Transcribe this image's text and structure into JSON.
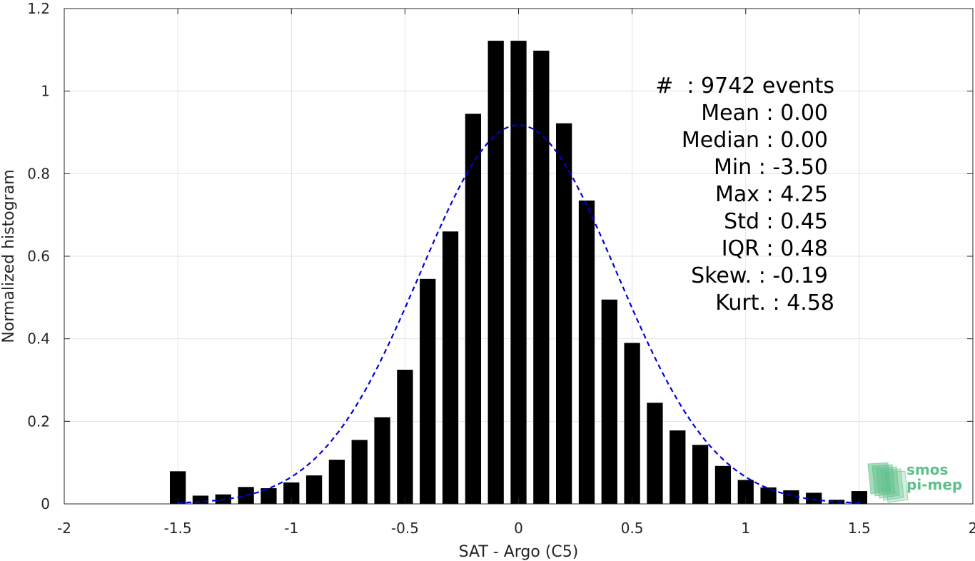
{
  "chart_data": {
    "type": "bar",
    "title": "",
    "xlabel": "SAT - Argo (C5)",
    "ylabel": "Normalized histogram",
    "xlim": [
      -2,
      2
    ],
    "ylim": [
      0,
      1.2
    ],
    "xticks": [
      -2,
      -1.5,
      -1,
      -0.5,
      0,
      0.5,
      1,
      1.5,
      2
    ],
    "xtick_labels": [
      "-2",
      "-1.5",
      "-1",
      "-0.5",
      "0",
      "0.5",
      "1",
      "1.5",
      "2"
    ],
    "yticks": [
      0,
      0.2,
      0.4,
      0.6,
      0.8,
      1,
      1.2
    ],
    "ytick_labels": [
      "0",
      "0.2",
      "0.4",
      "0.6",
      "0.8",
      "1",
      "1.2"
    ],
    "grid": true,
    "bar_width": 0.07,
    "series": [
      {
        "type": "bar",
        "color": "#000000",
        "x": [
          -1.5,
          -1.4,
          -1.3,
          -1.2,
          -1.1,
          -1.0,
          -0.9,
          -0.8,
          -0.7,
          -0.6,
          -0.5,
          -0.4,
          -0.3,
          -0.2,
          -0.1,
          0.0,
          0.1,
          0.2,
          0.3,
          0.4,
          0.5,
          0.6,
          0.7,
          0.8,
          0.9,
          1.0,
          1.1,
          1.2,
          1.3,
          1.4,
          1.5
        ],
        "values": [
          0.079,
          0.02,
          0.023,
          0.041,
          0.038,
          0.052,
          0.069,
          0.107,
          0.155,
          0.21,
          0.325,
          0.545,
          0.66,
          0.945,
          1.122,
          1.122,
          1.098,
          0.922,
          0.735,
          0.495,
          0.39,
          0.245,
          0.178,
          0.143,
          0.092,
          0.058,
          0.04,
          0.033,
          0.027,
          0.01,
          0.031
        ]
      },
      {
        "type": "line",
        "style": "dashed",
        "color": "#0000e0",
        "mean": 0.0,
        "std": 0.435,
        "peak": 0.918,
        "x_range": [
          -1.5,
          1.5
        ]
      }
    ],
    "annotations": [
      "#  : 9742 events",
      "Mean : 0.00",
      "Median : 0.00",
      "Min : -3.50",
      "Max : 4.25",
      "Std : 0.45",
      "IQR : 0.48",
      "Skew. : -0.19",
      "Kurt. : 4.58"
    ]
  },
  "logo": {
    "line1": "smos",
    "line2": "pi-mep",
    "color": "#5fbf8a"
  }
}
